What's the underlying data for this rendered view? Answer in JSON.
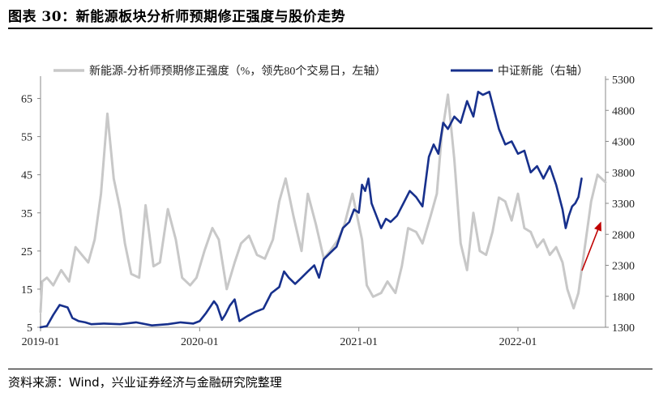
{
  "header": {
    "title": "图表 30：新能源板块分析师预期修正强度与股价走势"
  },
  "footer": {
    "source": "资料来源：Wind，兴业证券经济与金融研究院整理"
  },
  "chart_data": {
    "type": "line",
    "title": "",
    "x_ticks": [
      "2019-01",
      "2020-01",
      "2021-01",
      "2022-01"
    ],
    "x_range": [
      2019.0,
      2022.55
    ],
    "left_axis": {
      "ticks": [
        "65",
        "55",
        "45",
        "35",
        "25",
        "15",
        "5"
      ],
      "ylim": [
        5,
        70
      ]
    },
    "right_axis": {
      "ticks": [
        "5300",
        "4800",
        "4300",
        "3800",
        "3300",
        "2800",
        "2300",
        "1800",
        "1300"
      ],
      "ylim": [
        1300,
        5300
      ]
    },
    "legend": [
      {
        "name": "新能源-分析师预期修正强度（%，领先80个交易日，左轴）",
        "color": "#c8c8c8"
      },
      {
        "name": "中证新能（右轴）",
        "color": "#17308c"
      }
    ],
    "series": [
      {
        "name": "新能源-分析师预期修正强度（%，领先80个交易日，左轴）",
        "axis": "left",
        "color": "#c8c8c8",
        "x": [
          2019.0,
          2019.01,
          2019.04,
          2019.08,
          2019.13,
          2019.18,
          2019.22,
          2019.26,
          2019.3,
          2019.34,
          2019.38,
          2019.42,
          2019.46,
          2019.5,
          2019.53,
          2019.57,
          2019.62,
          2019.66,
          2019.71,
          2019.75,
          2019.8,
          2019.85,
          2019.89,
          2019.94,
          2019.98,
          2020.03,
          2020.08,
          2020.12,
          2020.17,
          2020.22,
          2020.26,
          2020.31,
          2020.36,
          2020.41,
          2020.46,
          2020.5,
          2020.54,
          2020.59,
          2020.64,
          2020.68,
          2020.73,
          2020.78,
          2020.82,
          2020.87,
          2020.91,
          2020.96,
          2021.02,
          2021.05,
          2021.09,
          2021.14,
          2021.18,
          2021.23,
          2021.27,
          2021.31,
          2021.36,
          2021.4,
          2021.45,
          2021.49,
          2021.52,
          2021.56,
          2021.6,
          2021.64,
          2021.68,
          2021.72,
          2021.76,
          2021.8,
          2021.84,
          2021.88,
          2021.92,
          2021.96,
          2022.0,
          2022.04,
          2022.08,
          2022.12,
          2022.16,
          2022.2,
          2022.24,
          2022.28,
          2022.31,
          2022.35,
          2022.38,
          2022.42,
          2022.46,
          2022.5,
          2022.55
        ],
        "values": [
          9,
          17,
          18,
          16,
          20,
          17,
          26,
          24,
          22,
          28,
          40,
          61,
          44,
          36,
          27,
          19,
          18,
          37,
          21,
          22,
          36,
          28,
          18,
          16,
          18,
          25,
          31,
          28,
          15,
          22,
          27,
          29,
          24,
          23,
          28,
          38,
          44,
          34,
          25,
          40,
          32,
          23,
          25,
          28,
          32,
          40,
          28,
          16,
          13,
          14,
          17,
          14,
          21,
          31,
          30,
          27,
          34,
          40,
          55,
          66,
          49,
          27,
          20,
          35,
          25,
          24,
          30,
          39,
          38,
          33,
          40,
          31,
          30,
          26,
          28,
          24,
          26,
          22,
          15,
          10,
          14,
          26,
          38,
          45,
          43
        ]
      },
      {
        "name": "中证新能（右轴）",
        "axis": "right",
        "color": "#17308c",
        "x": [
          2019.0,
          2019.04,
          2019.08,
          2019.12,
          2019.17,
          2019.2,
          2019.24,
          2019.28,
          2019.32,
          2019.4,
          2019.5,
          2019.6,
          2019.7,
          2019.8,
          2019.88,
          2019.96,
          2020.0,
          2020.04,
          2020.09,
          2020.11,
          2020.14,
          2020.16,
          2020.19,
          2020.22,
          2020.25,
          2020.3,
          2020.35,
          2020.4,
          2020.45,
          2020.5,
          2020.53,
          2020.56,
          2020.6,
          2020.64,
          2020.68,
          2020.72,
          2020.75,
          2020.78,
          2020.82,
          2020.86,
          2020.9,
          2020.94,
          2020.97,
          2021.0,
          2021.02,
          2021.04,
          2021.06,
          2021.08,
          2021.11,
          2021.14,
          2021.17,
          2021.2,
          2021.24,
          2021.28,
          2021.32,
          2021.36,
          2021.4,
          2021.44,
          2021.47,
          2021.5,
          2021.53,
          2021.56,
          2021.6,
          2021.64,
          2021.68,
          2021.72,
          2021.75,
          2021.78,
          2021.82,
          2021.85,
          2021.88,
          2021.92,
          2021.96,
          2022.0,
          2022.04,
          2022.08,
          2022.12,
          2022.16,
          2022.2,
          2022.24,
          2022.28,
          2022.3,
          2022.32,
          2022.34,
          2022.36,
          2022.38,
          2022.4
        ],
        "values": [
          1300,
          1320,
          1500,
          1660,
          1620,
          1450,
          1400,
          1380,
          1350,
          1360,
          1350,
          1380,
          1330,
          1350,
          1380,
          1360,
          1400,
          1530,
          1720,
          1650,
          1420,
          1500,
          1650,
          1750,
          1400,
          1480,
          1550,
          1600,
          1850,
          1950,
          2200,
          2100,
          2000,
          2100,
          2200,
          2300,
          2100,
          2400,
          2500,
          2600,
          2900,
          3000,
          3200,
          3150,
          3600,
          3500,
          3700,
          3300,
          3100,
          2900,
          3050,
          3000,
          3100,
          3300,
          3500,
          3400,
          3250,
          4050,
          4250,
          4100,
          4600,
          4500,
          4700,
          4600,
          4950,
          4700,
          5100,
          5050,
          5100,
          4800,
          4500,
          4250,
          4300,
          4100,
          4150,
          3800,
          3900,
          3700,
          3900,
          3600,
          3200,
          2900,
          3100,
          3250,
          3300,
          3400,
          3700
        ]
      }
    ],
    "annotation": {
      "type": "arrow",
      "color": "#c00000",
      "direction": "up-right"
    }
  }
}
